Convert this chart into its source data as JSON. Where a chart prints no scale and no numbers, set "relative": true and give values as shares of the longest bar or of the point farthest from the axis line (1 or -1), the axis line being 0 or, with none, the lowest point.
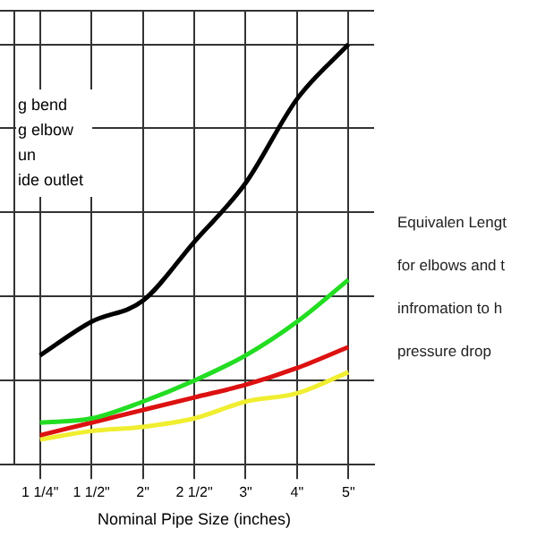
{
  "chart_data": {
    "type": "line",
    "relative": true,
    "xlabel": "Nominal Pipe Size (inches)",
    "categories": [
      "1 1/4\"",
      "1 1/2\"",
      "2\"",
      "2 1/2\"",
      "3\"",
      "4\"",
      "5\""
    ],
    "series": [
      {
        "color": "#000000",
        "values": [
          0.26,
          0.34,
          0.39,
          0.53,
          0.67,
          0.87,
          1
        ]
      },
      {
        "color": "#22dd22",
        "values": [
          0.1,
          0.11,
          0.15,
          0.2,
          0.26,
          0.34,
          0.44
        ]
      },
      {
        "color": "#dd1111",
        "values": [
          0.07,
          0.1,
          0.13,
          0.16,
          0.19,
          0.23,
          0.28
        ]
      },
      {
        "color": "#f0ee30",
        "values": [
          0.06,
          0.08,
          0.09,
          0.11,
          0.15,
          0.17,
          0.22
        ]
      }
    ],
    "annotations": [
      "g bend",
      "g elbow",
      "un",
      "ide outlet",
      "Equivalen Lengt",
      "for elbows and t",
      "infromation to h",
      "pressure drop"
    ],
    "grid": true,
    "legend": false,
    "marker": "none",
    "line_style": "solid"
  }
}
